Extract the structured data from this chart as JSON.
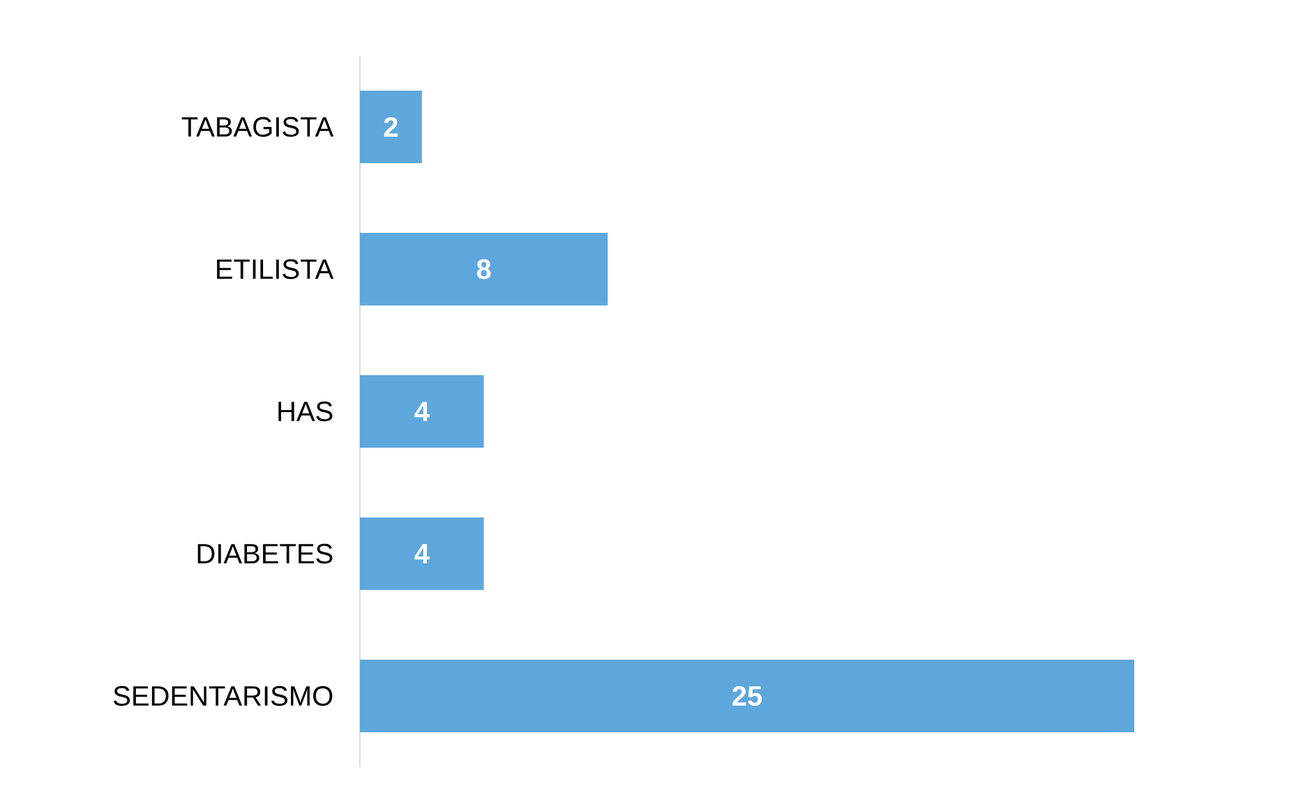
{
  "chart_data": {
    "type": "bar",
    "orientation": "horizontal",
    "categories": [
      "TABAGISTA",
      "ETILISTA",
      "HAS",
      "DIABETES",
      "SEDENTARISMO"
    ],
    "values": [
      2,
      8,
      4,
      4,
      25
    ],
    "color": "#5ea7dc",
    "data_labels": true
  }
}
